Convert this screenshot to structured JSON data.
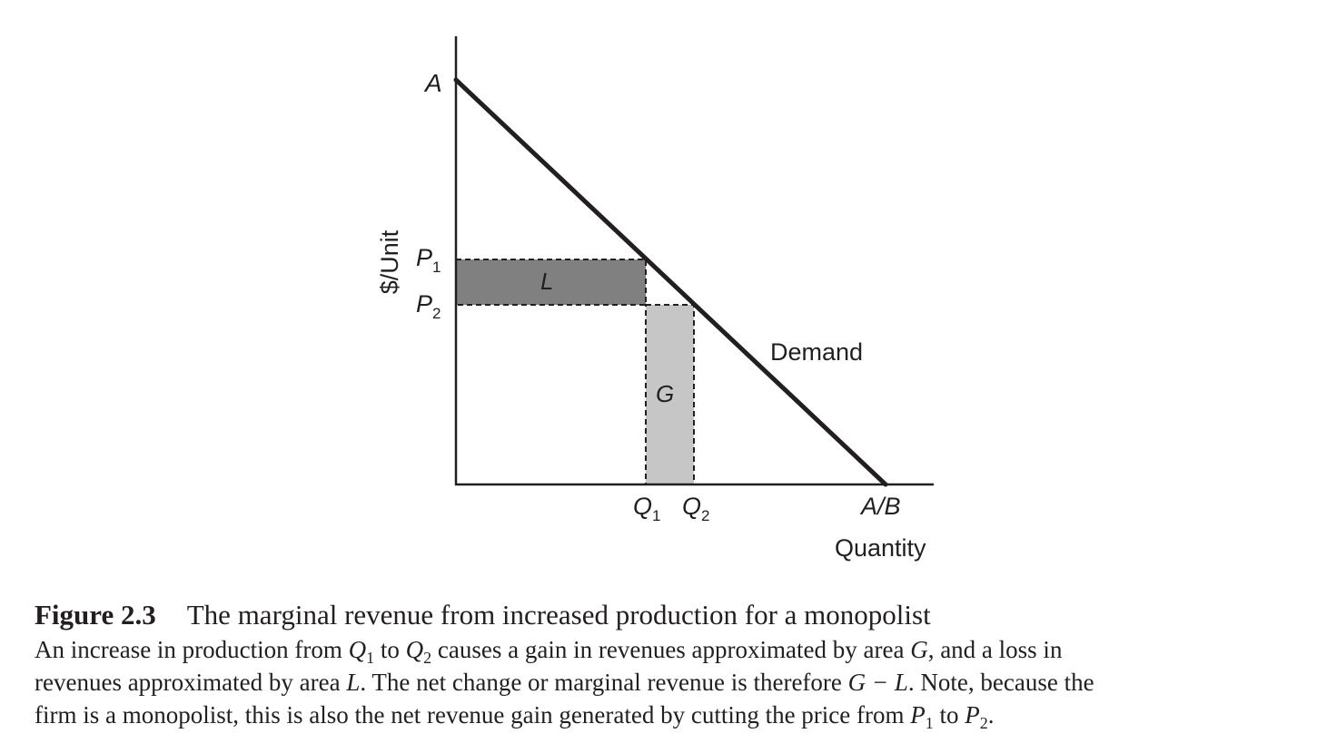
{
  "diagram": {
    "y_axis_label": "$/Unit",
    "x_axis_label": "Quantity",
    "intercept_top": "A",
    "intercept_right": "A/B",
    "curve_label": "Demand",
    "price_labels": [
      {
        "letter": "P",
        "sub": "1"
      },
      {
        "letter": "P",
        "sub": "2"
      }
    ],
    "quantity_labels": [
      {
        "letter": "Q",
        "sub": "1"
      },
      {
        "letter": "Q",
        "sub": "2"
      }
    ],
    "area_loss_label": "L",
    "area_gain_label": "G",
    "colors": {
      "ink": "#231f20",
      "area_loss": "#808080",
      "area_gain": "#c6c6c6"
    }
  },
  "caption": {
    "number": "Figure 2.3",
    "title": "The marginal revenue from increased production for a monopolist",
    "line1": {
      "t1": "An increase in production from ",
      "q": "Q",
      "q1": "1",
      "t2": " to ",
      "q2": "2",
      "t3": " causes a gain in revenues approximated by area ",
      "g": "G",
      "t4": ", and a loss in"
    },
    "line2": {
      "t1": "revenues approximated by area ",
      "l": "L",
      "t2": ". The net change or marginal revenue is therefore ",
      "expr": "G − L",
      "t3": ". Note, because the"
    },
    "line3": {
      "t1": "firm is a monopolist, this is also the net revenue gain generated by cutting the price from ",
      "p": "P",
      "p1": "1",
      "t2": " to ",
      "p2": "2",
      "t3": "."
    }
  }
}
